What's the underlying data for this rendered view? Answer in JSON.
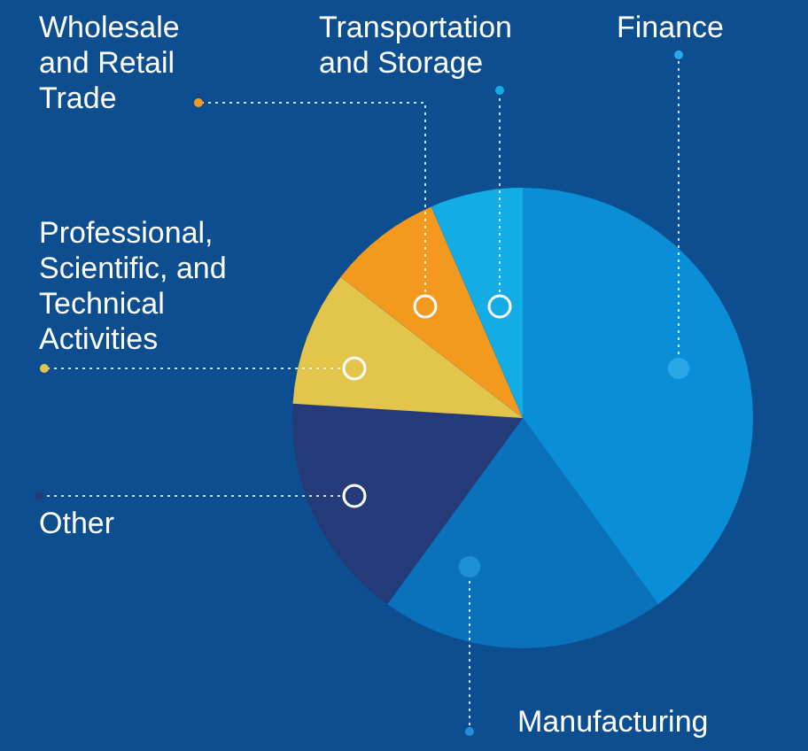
{
  "chart_data": {
    "type": "pie",
    "legend": false,
    "categories": [
      "Finance",
      "Manufacturing",
      "Other",
      "Professional, Scientific, and Technical Activities",
      "Wholesale and Retail Trade",
      "Transportation and Storage"
    ],
    "values": [
      40,
      20,
      16,
      9.5,
      8,
      6.5
    ],
    "colors": [
      "#0a8ed6",
      "#0a72bb",
      "#253a78",
      "#e2c54a",
      "#f39a1e",
      "#14ace5"
    ]
  }
}
